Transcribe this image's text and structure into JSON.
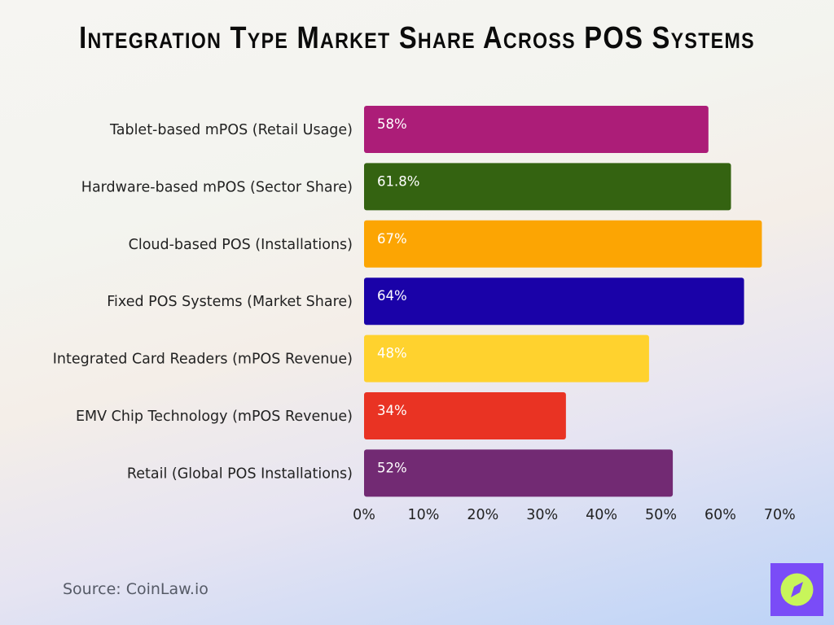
{
  "chart_data": {
    "type": "bar",
    "orientation": "horizontal",
    "title": "Integration Type Market Share Across POS Systems",
    "categories": [
      "Tablet-based mPOS (Retail Usage)",
      "Hardware-based mPOS (Sector Share)",
      "Cloud-based POS (Installations)",
      "Fixed POS Systems (Market Share)",
      "Integrated Card Readers (mPOS Revenue)",
      "EMV Chip Technology (mPOS Revenue)",
      "Retail (Global POS Installations)"
    ],
    "values": [
      58,
      61.8,
      67,
      64,
      48,
      34,
      52
    ],
    "data_labels": [
      "58%",
      "61.8%",
      "67%",
      "64%",
      "48%",
      "34%",
      "52%"
    ],
    "colors": [
      "#ac1d78",
      "#346311",
      "#fca503",
      "#1a02a8",
      "#ffd22e",
      "#e93323",
      "#722a73"
    ],
    "xlim": [
      0,
      70
    ],
    "xticks": [
      "0%",
      "10%",
      "20%",
      "30%",
      "40%",
      "50%",
      "60%",
      "70%"
    ],
    "grid": false,
    "legend": "none"
  },
  "source": "Source: CoinLaw.io",
  "logo": {
    "icon": "compass-icon",
    "bg": "#7a4cf7",
    "fg": "#c8f55a"
  }
}
